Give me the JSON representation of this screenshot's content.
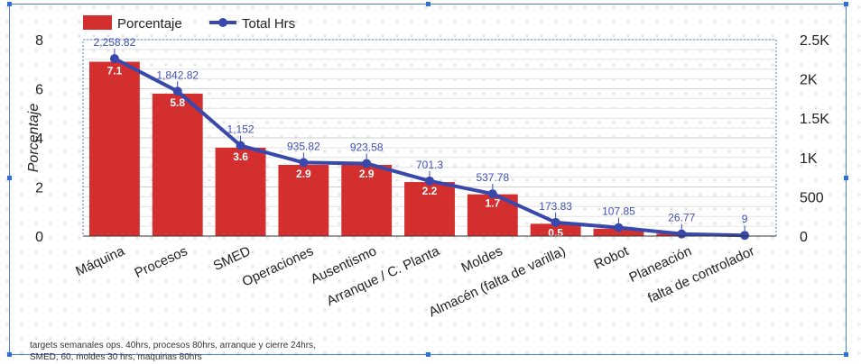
{
  "chart_data": {
    "type": "bar",
    "categories": [
      "Máquina",
      "Procesos",
      "SMED",
      "Operaciones",
      "Ausentismo",
      "Arranque / C. Planta",
      "Moldes",
      "Almacén (falta de varilla)",
      "Robot",
      "Planeación",
      "falta de controlador"
    ],
    "series": [
      {
        "name": "Porcentaje",
        "type": "bar",
        "axis": "left",
        "values": [
          7.1,
          5.8,
          3.6,
          2.9,
          2.9,
          2.2,
          1.7,
          0.5,
          0.3,
          0.1,
          0.0
        ],
        "labels": [
          "7.1",
          "5.8",
          "3.6",
          "2.9",
          "2.9",
          "2.2",
          "1.7",
          "0.5",
          "",
          "",
          ""
        ],
        "color": "#d32f2f"
      },
      {
        "name": "Total Hrs",
        "type": "line",
        "axis": "right",
        "values": [
          2258.82,
          1842.82,
          1152,
          935.82,
          923.58,
          701.3,
          537.78,
          173.83,
          107.85,
          26.77,
          9
        ],
        "labels": [
          "2,258.82",
          "1,842.82",
          "1,152",
          "935.82",
          "923.58",
          "701.3",
          "537.78",
          "173.83",
          "107.85",
          "26.77",
          "9"
        ],
        "color": "#3949ab"
      }
    ],
    "ylabel": "Porcentaje",
    "ylim": [
      0,
      8
    ],
    "y_ticks": [
      0,
      2,
      4,
      6,
      8
    ],
    "y2lim": [
      0,
      2500
    ],
    "y2_ticks": [
      "0",
      "500",
      "1K",
      "1.5K",
      "2K",
      "2.5K"
    ],
    "legend": "top-left",
    "grid": true
  },
  "footnote": "targets semanales ops. 40hrs, procesos 80hrs,  arranque y cierre 24hrs, SMED, 60, moldes 30 hrs, maquinas 80hrs"
}
